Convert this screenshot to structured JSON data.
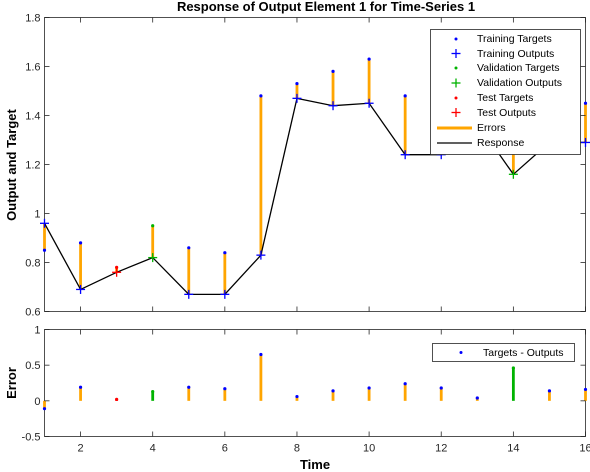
{
  "chart_data": [
    {
      "type": "line",
      "title": "Response of Output Element 1 for Time-Series 1",
      "xlabel": "",
      "ylabel": "Output and Target",
      "xlim": [
        1,
        16
      ],
      "ylim": [
        0.6,
        1.8
      ],
      "x_ticks": [
        2,
        4,
        6,
        8,
        10,
        12,
        14,
        16
      ],
      "y_ticks": [
        0.6,
        0.8,
        1,
        1.2,
        1.4,
        1.6,
        1.8
      ],
      "x_tick_labels": [
        "2",
        "4",
        "6",
        "8",
        "10",
        "12",
        "14",
        "16"
      ],
      "y_tick_labels": [
        "0.6",
        "0.8",
        "1",
        "1.2",
        "1.4",
        "1.6",
        "1.8"
      ],
      "x": [
        1,
        2,
        3,
        4,
        5,
        6,
        7,
        8,
        9,
        10,
        11,
        12,
        13,
        14,
        15,
        16
      ],
      "targets": [
        0.85,
        0.88,
        0.78,
        0.95,
        0.86,
        0.84,
        1.48,
        1.53,
        1.58,
        1.63,
        1.48,
        1.42,
        1.41,
        1.62,
        1.43,
        1.45
      ],
      "outputs": [
        0.96,
        0.69,
        0.76,
        0.82,
        0.67,
        0.67,
        0.83,
        1.47,
        1.44,
        1.45,
        1.24,
        1.24,
        1.37,
        1.16,
        1.29,
        1.29
      ],
      "sets": [
        "train",
        "train",
        "test",
        "val",
        "train",
        "train",
        "train",
        "train",
        "train",
        "train",
        "train",
        "train",
        "train",
        "val",
        "train",
        "train"
      ],
      "legend": {
        "position": "top-right",
        "entries": [
          "Training Targets",
          "Training Outputs",
          "Validation Targets",
          "Validation Outputs",
          "Test Targets",
          "Test Outputs",
          "Errors",
          "Response"
        ]
      },
      "colors": {
        "training": "#0000ff",
        "validation": "#00b300",
        "test": "#ff0000",
        "errors": "#ffa500",
        "response": "#000000"
      },
      "grid": false
    },
    {
      "type": "bar",
      "title": "",
      "xlabel": "Time",
      "ylabel": "Error",
      "xlim": [
        1,
        16
      ],
      "ylim": [
        -0.5,
        1
      ],
      "x_ticks": [
        2,
        4,
        6,
        8,
        10,
        12,
        14,
        16
      ],
      "y_ticks": [
        -0.5,
        0,
        0.5,
        1
      ],
      "x_tick_labels": [
        "2",
        "4",
        "6",
        "8",
        "10",
        "12",
        "14",
        "16"
      ],
      "y_tick_labels": [
        "-0.5",
        "0",
        "0.5",
        "1"
      ],
      "x": [
        1,
        2,
        3,
        4,
        5,
        6,
        7,
        8,
        9,
        10,
        11,
        12,
        13,
        14,
        15,
        16
      ],
      "values": [
        -0.11,
        0.19,
        0.02,
        0.13,
        0.19,
        0.17,
        0.65,
        0.06,
        0.14,
        0.18,
        0.24,
        0.18,
        0.04,
        0.46,
        0.14,
        0.16
      ],
      "legend": {
        "position": "top-right",
        "entries": [
          "Targets - Outputs"
        ]
      },
      "colors": {
        "errors": "#ffa500",
        "dots": "#0000ff"
      },
      "grid": false
    }
  ]
}
